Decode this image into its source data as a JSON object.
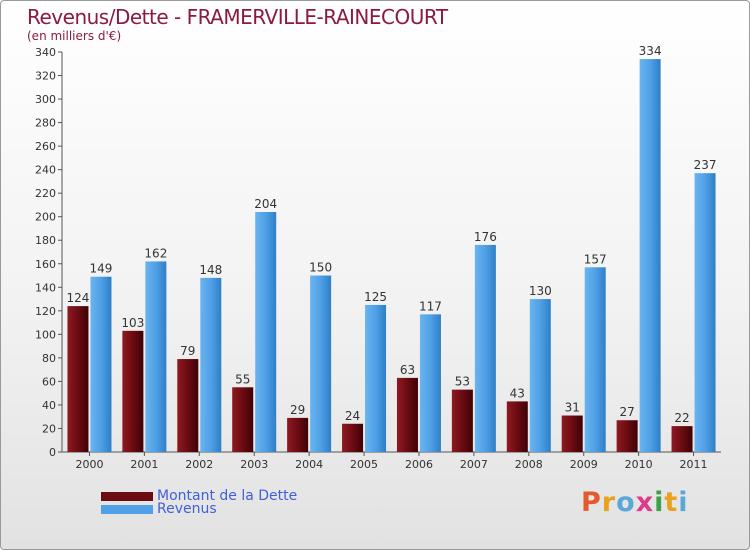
{
  "title": "Revenus/Dette - FRAMERVILLE-RAINECOURT",
  "subtitle": "(en milliers d'€)",
  "legend": [
    {
      "label": "Montant de la Dette",
      "color": "#6b0b12"
    },
    {
      "label": "Revenus",
      "color": "#4fa0e6"
    }
  ],
  "logo": {
    "text": "Proxiti",
    "colors": [
      "#e35a2e",
      "#e8a21d",
      "#5aa8d8",
      "#e03a8a",
      "#3aa348",
      "#e8a21d",
      "#5aa8d8"
    ]
  },
  "chart_data": {
    "type": "bar",
    "categories": [
      "2000",
      "2001",
      "2002",
      "2003",
      "2004",
      "2005",
      "2006",
      "2007",
      "2008",
      "2009",
      "2010",
      "2011"
    ],
    "series": [
      {
        "name": "Montant de la Dette",
        "color": "#6b0b12",
        "values": [
          124,
          103,
          79,
          55,
          29,
          24,
          63,
          53,
          43,
          31,
          27,
          22
        ]
      },
      {
        "name": "Revenus",
        "color": "#4fa0e6",
        "values": [
          149,
          162,
          148,
          204,
          150,
          125,
          117,
          176,
          130,
          157,
          334,
          237
        ]
      }
    ],
    "ylim": [
      0,
      340
    ],
    "yticks": [
      0,
      20,
      40,
      60,
      80,
      100,
      120,
      140,
      160,
      180,
      200,
      220,
      240,
      260,
      280,
      300,
      320,
      340
    ],
    "grid": false
  }
}
